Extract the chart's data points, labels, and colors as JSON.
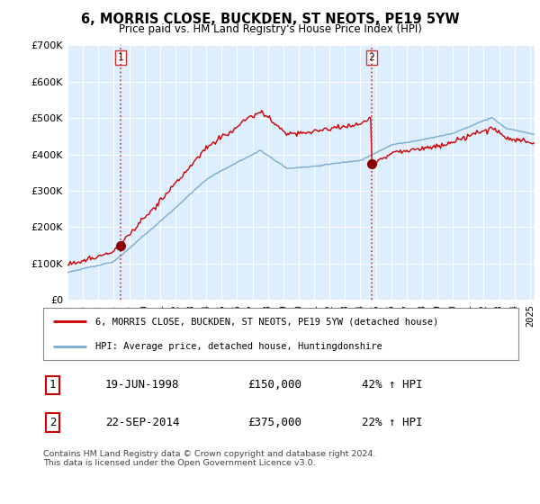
{
  "title": "6, MORRIS CLOSE, BUCKDEN, ST NEOTS, PE19 5YW",
  "subtitle": "Price paid vs. HM Land Registry's House Price Index (HPI)",
  "legend_line1": "6, MORRIS CLOSE, BUCKDEN, ST NEOTS, PE19 5YW (detached house)",
  "legend_line2": "HPI: Average price, detached house, Huntingdonshire",
  "footnote": "Contains HM Land Registry data © Crown copyright and database right 2024.\nThis data is licensed under the Open Government Licence v3.0.",
  "transaction1_date": "19-JUN-1998",
  "transaction1_price": "£150,000",
  "transaction1_hpi": "42% ↑ HPI",
  "transaction2_date": "22-SEP-2014",
  "transaction2_price": "£375,000",
  "transaction2_hpi": "22% ↑ HPI",
  "ylim": [
    0,
    700000
  ],
  "yticks": [
    0,
    100000,
    200000,
    300000,
    400000,
    500000,
    600000,
    700000
  ],
  "price_line_color": "#cc0000",
  "hpi_line_color": "#7aabcf",
  "marker_color": "#8b0000",
  "vline_color": "#cc3333",
  "chart_bg_color": "#ddeeff",
  "grid_color": "#ffffff",
  "transaction1_x": 1998.46,
  "transaction2_x": 2014.72,
  "xlim_left": 1995.0,
  "xlim_right": 2025.3
}
